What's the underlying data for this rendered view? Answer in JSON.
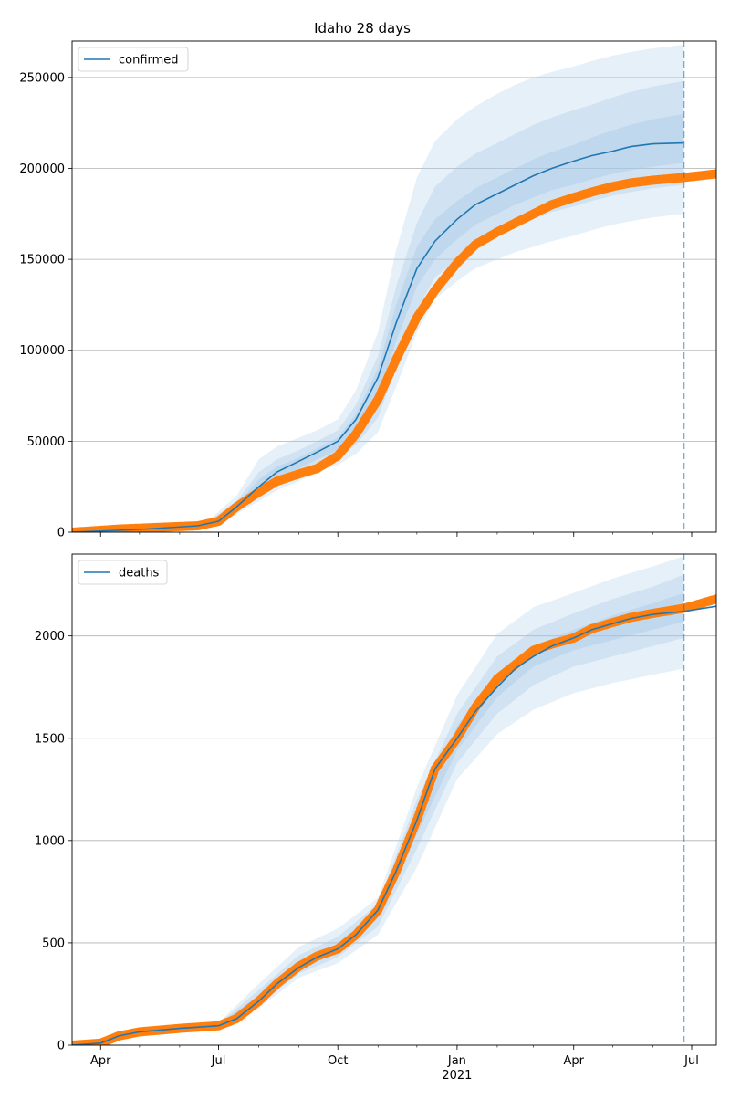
{
  "figure": {
    "title": "Idaho 28 days"
  },
  "chart_data": [
    {
      "type": "line",
      "name": "confirmed",
      "title": "Idaho 28 days",
      "legend": {
        "position": "top-left",
        "entries": [
          "confirmed"
        ]
      },
      "grid": "horizontal",
      "xlim": [
        "2020-03-10",
        "2021-07-20"
      ],
      "ylim": [
        0,
        270000
      ],
      "yticks": [
        0,
        50000,
        100000,
        150000,
        200000,
        250000
      ],
      "forecast_start": "2021-06-25",
      "colors": {
        "model": "#1f77b4",
        "observed": "#ff7f0e",
        "band": "#a6c8e6"
      },
      "series": [
        {
          "name": "confirmed",
          "kind": "model-median",
          "points": [
            [
              "2020-03-10",
              0
            ],
            [
              "2020-05-01",
              1500
            ],
            [
              "2020-06-15",
              3500
            ],
            [
              "2020-07-01",
              6000
            ],
            [
              "2020-07-15",
              14000
            ],
            [
              "2020-08-01",
              25000
            ],
            [
              "2020-08-15",
              33000
            ],
            [
              "2020-09-01",
              39000
            ],
            [
              "2020-09-15",
              44000
            ],
            [
              "2020-10-01",
              50000
            ],
            [
              "2020-10-15",
              62000
            ],
            [
              "2020-11-01",
              85000
            ],
            [
              "2020-11-15",
              115000
            ],
            [
              "2020-12-01",
              145000
            ],
            [
              "2020-12-15",
              160000
            ],
            [
              "2021-01-01",
              172000
            ],
            [
              "2021-01-15",
              180000
            ],
            [
              "2021-02-01",
              186000
            ],
            [
              "2021-02-15",
              191000
            ],
            [
              "2021-03-01",
              196000
            ],
            [
              "2021-03-15",
              200000
            ],
            [
              "2021-04-01",
              204000
            ],
            [
              "2021-04-15",
              207000
            ],
            [
              "2021-05-01",
              209500
            ],
            [
              "2021-05-15",
              212000
            ],
            [
              "2021-06-01",
              213500
            ],
            [
              "2021-06-25",
              214000
            ]
          ]
        },
        {
          "kind": "observed",
          "points": [
            [
              "2020-03-10",
              0
            ],
            [
              "2020-04-15",
              1700
            ],
            [
              "2020-05-15",
              2600
            ],
            [
              "2020-06-15",
              3500
            ],
            [
              "2020-07-01",
              6000
            ],
            [
              "2020-07-15",
              14000
            ],
            [
              "2020-08-01",
              22000
            ],
            [
              "2020-08-15",
              28000
            ],
            [
              "2020-09-01",
              32000
            ],
            [
              "2020-09-15",
              35000
            ],
            [
              "2020-10-01",
              42000
            ],
            [
              "2020-10-15",
              54000
            ],
            [
              "2020-11-01",
              73000
            ],
            [
              "2020-11-15",
              95000
            ],
            [
              "2020-12-01",
              118000
            ],
            [
              "2020-12-15",
              133000
            ],
            [
              "2021-01-01",
              148000
            ],
            [
              "2021-01-15",
              158000
            ],
            [
              "2021-02-01",
              165000
            ],
            [
              "2021-02-15",
              170000
            ],
            [
              "2021-03-01",
              175000
            ],
            [
              "2021-03-15",
              180000
            ],
            [
              "2021-04-01",
              184000
            ],
            [
              "2021-04-15",
              187000
            ],
            [
              "2021-05-01",
              190000
            ],
            [
              "2021-05-15",
              192000
            ],
            [
              "2021-06-01",
              193500
            ],
            [
              "2021-06-25",
              195000
            ],
            [
              "2021-07-20",
              197000
            ]
          ]
        }
      ],
      "bands": [
        {
          "level": "outer",
          "x": [
            "2020-06-20",
            "2020-07-15",
            "2020-08-01",
            "2020-08-15",
            "2020-09-01",
            "2020-09-15",
            "2020-10-01",
            "2020-10-15",
            "2020-11-01",
            "2020-11-15",
            "2020-12-01",
            "2020-12-15",
            "2021-01-01",
            "2021-01-15",
            "2021-02-01",
            "2021-02-15",
            "2021-03-01",
            "2021-03-15",
            "2021-04-01",
            "2021-04-15",
            "2021-05-01",
            "2021-05-15",
            "2021-06-01",
            "2021-06-25"
          ],
          "upper": [
            4500,
            20000,
            40000,
            47000,
            52000,
            56000,
            62000,
            78000,
            110000,
            155000,
            195000,
            215000,
            227000,
            234000,
            241000,
            246000,
            250000,
            253000,
            256000,
            259000,
            262000,
            264000,
            266000,
            268000
          ],
          "lower": [
            3500,
            10000,
            17000,
            23000,
            28000,
            33000,
            37000,
            43000,
            55000,
            80000,
            110000,
            128000,
            138000,
            145000,
            150000,
            154000,
            157000,
            160000,
            163000,
            166000,
            169000,
            171000,
            173000,
            175000
          ]
        },
        {
          "level": "middle",
          "x": [
            "2020-06-20",
            "2020-07-15",
            "2020-08-01",
            "2020-08-15",
            "2020-09-01",
            "2020-09-15",
            "2020-10-01",
            "2020-10-15",
            "2020-11-01",
            "2020-11-15",
            "2020-12-01",
            "2020-12-15",
            "2021-01-01",
            "2021-01-15",
            "2021-02-01",
            "2021-02-15",
            "2021-03-01",
            "2021-03-15",
            "2021-04-01",
            "2021-04-15",
            "2021-05-01",
            "2021-05-15",
            "2021-06-01",
            "2021-06-25"
          ],
          "upper": [
            4300,
            17000,
            33000,
            40000,
            45000,
            50000,
            56000,
            70000,
            97000,
            135000,
            170000,
            190000,
            201000,
            208000,
            214000,
            219000,
            224000,
            228000,
            232000,
            235000,
            239000,
            242000,
            245000,
            248000
          ],
          "lower": [
            3700,
            11000,
            20000,
            26000,
            31000,
            36000,
            40000,
            48000,
            63000,
            90000,
            122000,
            140000,
            150000,
            157000,
            163000,
            168000,
            172000,
            176000,
            179000,
            182000,
            185000,
            187000,
            189000,
            191000
          ]
        },
        {
          "level": "inner",
          "x": [
            "2020-06-20",
            "2020-07-15",
            "2020-08-01",
            "2020-08-15",
            "2020-09-01",
            "2020-09-15",
            "2020-10-01",
            "2020-10-15",
            "2020-11-01",
            "2020-11-15",
            "2020-12-01",
            "2020-12-15",
            "2021-01-01",
            "2021-01-15",
            "2021-02-01",
            "2021-02-15",
            "2021-03-01",
            "2021-03-15",
            "2021-04-01",
            "2021-04-15",
            "2021-05-01",
            "2021-05-15",
            "2021-06-01",
            "2021-06-25"
          ],
          "upper": [
            4100,
            15000,
            29000,
            36000,
            41000,
            46000,
            52000,
            65000,
            90000,
            125000,
            157000,
            172000,
            182000,
            189000,
            195000,
            200000,
            205000,
            209000,
            213000,
            217000,
            221000,
            224000,
            227000,
            230000
          ],
          "lower": [
            3900,
            12500,
            23000,
            30000,
            35000,
            40000,
            45000,
            55000,
            75000,
            105000,
            135000,
            150000,
            161000,
            169000,
            175000,
            180000,
            184000,
            188000,
            191000,
            194000,
            197000,
            199000,
            201000,
            203000
          ]
        }
      ]
    },
    {
      "type": "line",
      "name": "deaths",
      "legend": {
        "position": "top-left",
        "entries": [
          "deaths"
        ]
      },
      "grid": "horizontal",
      "xlim": [
        "2020-03-10",
        "2021-07-20"
      ],
      "ylim": [
        0,
        2400
      ],
      "yticks": [
        0,
        500,
        1000,
        1500,
        2000
      ],
      "xticks": [
        [
          "2020-04-01",
          "Apr"
        ],
        [
          "2020-07-01",
          "Jul"
        ],
        [
          "2020-10-01",
          "Oct"
        ],
        [
          "2021-01-01",
          "Jan"
        ],
        [
          "2021-04-01",
          "Apr"
        ],
        [
          "2021-07-01",
          "Jul"
        ]
      ],
      "xtick_year_label": "2021",
      "forecast_start": "2021-06-25",
      "colors": {
        "model": "#1f77b4",
        "observed": "#ff7f0e",
        "band": "#a6c8e6"
      },
      "series": [
        {
          "name": "deaths",
          "kind": "model-median",
          "points": [
            [
              "2020-03-10",
              0
            ],
            [
              "2020-04-01",
              10
            ],
            [
              "2020-04-15",
              45
            ],
            [
              "2020-05-01",
              65
            ],
            [
              "2020-06-01",
              82
            ],
            [
              "2020-07-01",
              95
            ],
            [
              "2020-07-15",
              130
            ],
            [
              "2020-08-01",
              215
            ],
            [
              "2020-08-15",
              300
            ],
            [
              "2020-09-01",
              380
            ],
            [
              "2020-09-15",
              430
            ],
            [
              "2020-10-01",
              470
            ],
            [
              "2020-10-15",
              540
            ],
            [
              "2020-11-01",
              660
            ],
            [
              "2020-11-15",
              850
            ],
            [
              "2020-12-01",
              1100
            ],
            [
              "2020-12-15",
              1350
            ],
            [
              "2021-01-01",
              1500
            ],
            [
              "2021-01-15",
              1630
            ],
            [
              "2021-02-01",
              1750
            ],
            [
              "2021-02-15",
              1840
            ],
            [
              "2021-03-01",
              1900
            ],
            [
              "2021-03-15",
              1950
            ],
            [
              "2021-04-01",
              1990
            ],
            [
              "2021-04-15",
              2030
            ],
            [
              "2021-05-01",
              2060
            ],
            [
              "2021-05-15",
              2085
            ],
            [
              "2021-06-01",
              2105
            ],
            [
              "2021-06-25",
              2120
            ],
            [
              "2021-07-20",
              2145
            ]
          ]
        },
        {
          "kind": "observed",
          "points": [
            [
              "2020-03-10",
              0
            ],
            [
              "2020-04-01",
              10
            ],
            [
              "2020-04-15",
              45
            ],
            [
              "2020-05-01",
              65
            ],
            [
              "2020-06-01",
              82
            ],
            [
              "2020-07-01",
              95
            ],
            [
              "2020-07-15",
              130
            ],
            [
              "2020-08-01",
              215
            ],
            [
              "2020-08-15",
              300
            ],
            [
              "2020-09-01",
              385
            ],
            [
              "2020-09-15",
              435
            ],
            [
              "2020-10-01",
              470
            ],
            [
              "2020-10-15",
              540
            ],
            [
              "2020-11-01",
              660
            ],
            [
              "2020-11-15",
              850
            ],
            [
              "2020-12-01",
              1100
            ],
            [
              "2020-12-15",
              1350
            ],
            [
              "2021-01-01",
              1500
            ],
            [
              "2021-01-15",
              1650
            ],
            [
              "2021-02-01",
              1790
            ],
            [
              "2021-02-15",
              1860
            ],
            [
              "2021-03-01",
              1930
            ],
            [
              "2021-03-15",
              1960
            ],
            [
              "2021-04-01",
              1990
            ],
            [
              "2021-04-15",
              2035
            ],
            [
              "2021-05-01",
              2065
            ],
            [
              "2021-05-15",
              2090
            ],
            [
              "2021-06-01",
              2110
            ],
            [
              "2021-06-25",
              2135
            ],
            [
              "2021-07-20",
              2180
            ]
          ]
        }
      ],
      "bands": [
        {
          "level": "outer",
          "x": [
            "2020-07-01",
            "2020-08-01",
            "2020-09-01",
            "2020-10-01",
            "2020-11-01",
            "2020-12-01",
            "2021-01-01",
            "2021-02-01",
            "2021-03-01",
            "2021-04-01",
            "2021-05-01",
            "2021-06-01",
            "2021-06-25"
          ],
          "upper": [
            110,
            300,
            480,
            570,
            720,
            1260,
            1710,
            2010,
            2140,
            2210,
            2280,
            2340,
            2390
          ],
          "lower": [
            90,
            180,
            330,
            400,
            540,
            870,
            1300,
            1520,
            1640,
            1720,
            1770,
            1810,
            1840
          ]
        },
        {
          "level": "middle",
          "x": [
            "2020-07-01",
            "2020-08-01",
            "2020-09-01",
            "2020-10-01",
            "2020-11-01",
            "2020-12-01",
            "2021-01-01",
            "2021-02-01",
            "2021-03-01",
            "2021-04-01",
            "2021-05-01",
            "2021-06-01",
            "2021-06-25"
          ],
          "upper": [
            105,
            270,
            440,
            530,
            690,
            1200,
            1620,
            1900,
            2030,
            2110,
            2180,
            2240,
            2300
          ],
          "lower": [
            95,
            195,
            350,
            430,
            580,
            960,
            1380,
            1620,
            1760,
            1850,
            1900,
            1950,
            1990
          ]
        },
        {
          "level": "inner",
          "x": [
            "2020-07-01",
            "2020-08-01",
            "2020-09-01",
            "2020-10-01",
            "2020-11-01",
            "2020-12-01",
            "2021-01-01",
            "2021-02-01",
            "2021-03-01",
            "2021-04-01",
            "2021-05-01",
            "2021-06-01",
            "2021-06-25"
          ],
          "upper": [
            102,
            245,
            410,
            495,
            660,
            1150,
            1560,
            1820,
            1950,
            2030,
            2100,
            2160,
            2210
          ],
          "lower": [
            98,
            205,
            370,
            455,
            620,
            1030,
            1440,
            1700,
            1850,
            1930,
            1980,
            2030,
            2070
          ]
        }
      ]
    }
  ]
}
